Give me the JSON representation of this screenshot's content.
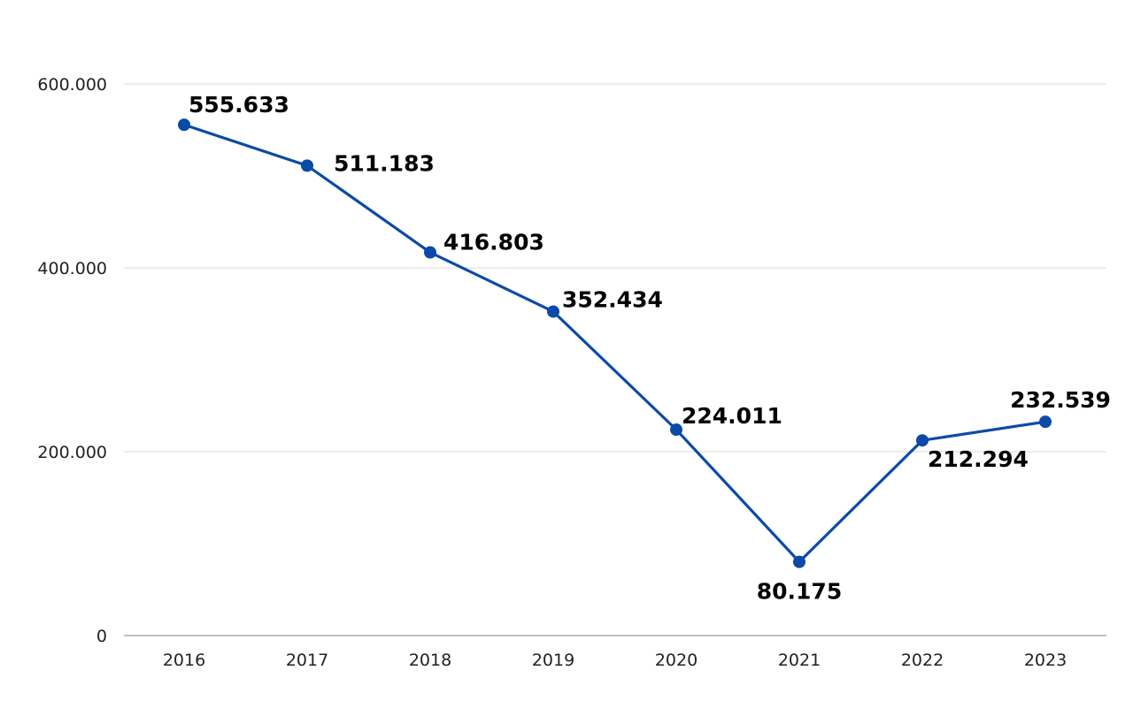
{
  "chart_data": {
    "type": "line",
    "categories": [
      "2016",
      "2017",
      "2018",
      "2019",
      "2020",
      "2021",
      "2022",
      "2023"
    ],
    "series": [
      {
        "values": [
          555633,
          511183,
          416803,
          352434,
          224011,
          80175,
          212294,
          232539
        ],
        "data_labels": [
          "555.633",
          "511.183",
          "416.803",
          "352.434",
          "224.011",
          "80.175",
          "212.294",
          "232.539"
        ],
        "color": "#0b4aa8"
      }
    ],
    "y_ticks": [
      {
        "value": 0,
        "label": "0"
      },
      {
        "value": 200000,
        "label": "200.000"
      },
      {
        "value": 400000,
        "label": "400.000"
      },
      {
        "value": 600000,
        "label": "600.000"
      }
    ],
    "ylim": [
      0,
      600000
    ],
    "grid": true,
    "legend": "none",
    "title": "",
    "xlabel": "",
    "ylabel": ""
  }
}
